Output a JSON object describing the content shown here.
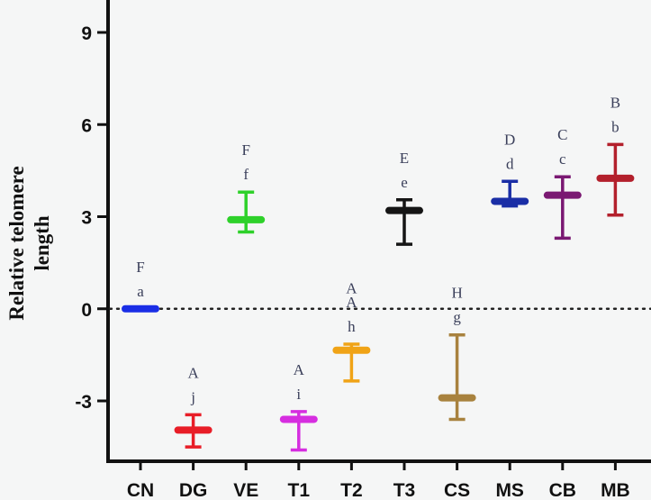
{
  "chart_data": {
    "type": "error-bar",
    "ylabel": [
      "Relative telomere",
      "length"
    ],
    "ylim": [
      -5,
      10
    ],
    "yticks": [
      -3,
      0,
      3,
      6,
      9
    ],
    "reference_line": 0,
    "groups": [
      {
        "name": "CN",
        "mean": 0.0,
        "low": 0.0,
        "high": 0.0,
        "upper_letter": "F",
        "lower_letter": "a",
        "color": "#1a2ee6"
      },
      {
        "name": "DG",
        "mean": -3.95,
        "low": -4.5,
        "high": -3.45,
        "upper_letter": "A",
        "lower_letter": "j",
        "color": "#e81d27"
      },
      {
        "name": "VE",
        "mean": 2.9,
        "low": 2.5,
        "high": 3.8,
        "upper_letter": "F",
        "lower_letter": "f",
        "color": "#2ed12a"
      },
      {
        "name": "T1",
        "mean": -3.6,
        "low": -4.6,
        "high": -3.35,
        "upper_letter": "A",
        "lower_letter": "i",
        "color": "#d62ee0"
      },
      {
        "name": "T2",
        "mean": -1.35,
        "low": -2.35,
        "high": -1.15,
        "upper_letter": "A",
        "lower_letter": "h",
        "color": "#f0a316"
      },
      {
        "name": "T3",
        "mean": 3.2,
        "low": 2.1,
        "high": 3.55,
        "upper_letter": "E",
        "lower_letter": "e",
        "color": "#151515"
      },
      {
        "name": "CS",
        "mean": -2.9,
        "low": -3.6,
        "high": -0.85,
        "upper_letter": "H",
        "lower_letter": "g",
        "color": "#a8823e"
      },
      {
        "name": "MS",
        "mean": 3.5,
        "low": 3.35,
        "high": 4.15,
        "upper_letter": "D",
        "lower_letter": "d",
        "color": "#1a2ea6"
      },
      {
        "name": "CB",
        "mean": 3.7,
        "low": 2.3,
        "high": 4.3,
        "upper_letter": "C",
        "lower_letter": "c",
        "color": "#7a1872"
      },
      {
        "name": "MB",
        "mean": 4.25,
        "low": 3.05,
        "high": 5.35,
        "upper_letter": "B",
        "lower_letter": "b",
        "color": "#b3202c"
      }
    ],
    "standalone_letters": [
      {
        "text": "A",
        "position_group": "T2",
        "y": 0.5
      }
    ],
    "grid": false,
    "legend": "none"
  }
}
